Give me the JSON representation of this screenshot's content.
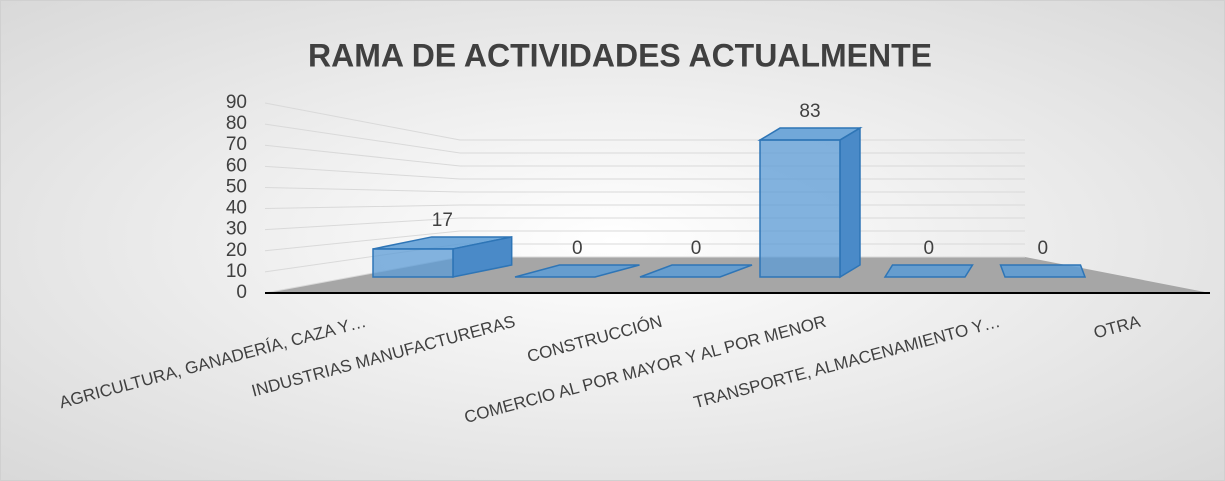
{
  "chart_data": {
    "type": "bar3d",
    "title": "RAMA DE ACTIVIDADES ACTUALMENTE",
    "categories": [
      "AGRICULTURA, GANADERÍA, CAZA Y…",
      "INDUSTRIAS MANUFACTURERAS",
      "CONSTRUCCIÓN",
      "COMERCIO AL POR MAYOR Y AL POR MENOR",
      "TRANSPORTE, ALMACENAMIENTO Y…",
      "OTRA"
    ],
    "values": [
      17,
      0,
      0,
      83,
      0,
      0
    ],
    "color": "#5b9bd5",
    "ylim": [
      0,
      90
    ],
    "yticks": [
      0,
      10,
      20,
      30,
      40,
      50,
      60,
      70,
      80,
      90
    ],
    "grid": true
  }
}
